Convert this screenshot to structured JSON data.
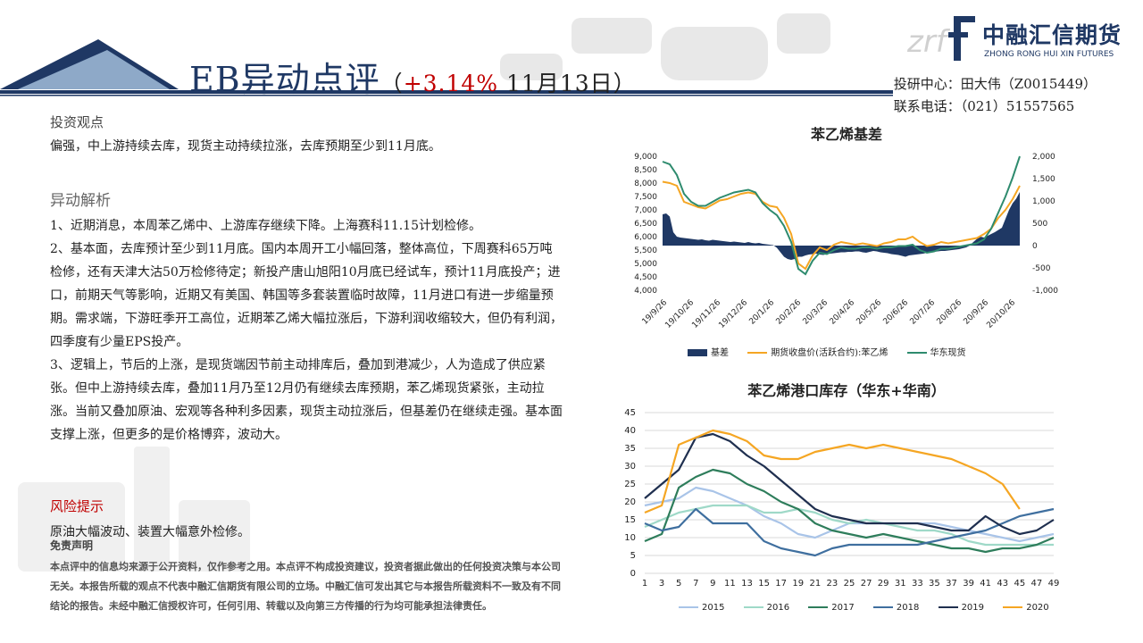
{
  "header": {
    "title_main": "EB异动点评",
    "title_paren_open": "（",
    "title_pct": "+3.14%",
    "title_date": " 11月13日",
    "title_paren_close": "）",
    "contact_center": "投研中心：田大伟（Z0015449）",
    "contact_phone": "联系电话：（021）51557565"
  },
  "logo": {
    "mark": "zrf",
    "cn": "中融汇信期货",
    "en": "ZHONG RONG HUI XIN FUTURES"
  },
  "view": {
    "heading": "投资观点",
    "text": "偏强，中上游持续去库，现货主动持续拉涨，去库预期至少到11月底。"
  },
  "analysis": {
    "heading": "异动解析",
    "paragraphs": [
      "1、近期消息，本周苯乙烯中、上游库存继续下降。上海赛科11.15计划检修。",
      "2、基本面，去库预计至少到11月底。国内本周开工小幅回落，整体高位，下周赛科65万吨检修，还有天津大沽50万检修待定；新投产唐山旭阳10月底已经试车，预计11月底投产；进口，前期天气等影响，近期又有美国、韩国等多套装置临时故障，11月进口有进一步缩量预期。需求端，下游旺季开工高位，近期苯乙烯大幅拉涨后，下游利润收缩较大，但仍有利润，四季度有少量EPS投产。",
      "3、逻辑上，节后的上涨，是现货端因节前主动排库后，叠加到港减少，人为造成了供应紧张。但中上游持续去库，叠加11月乃至12月仍有继续去库预期，苯乙烯现货紧张，主动拉涨。当前又叠加原油、宏观等各种利多因素，现货主动拉涨后，但基差仍在继续走强。基本面支撑上涨，但更多的是价格博弈，波动大。"
    ]
  },
  "risk": {
    "heading": "风险提示",
    "text": "原油大幅波动、装置大幅意外检修。"
  },
  "disclaimer": {
    "heading": "免责声明",
    "text": "本点评中的信息均来源于公开资料，仅作参考之用。本点评不构成投资建议，投资者据此做出的任何投资决策与本公司无关。本报告所载的观点不代表中融汇信期货有限公司的立场。中融汇信可发出其它与本报告所载资料不一致及有不同结论的报告。未经中融汇信授权许可，任何引用、转载以及向第三方传播的行为均可能承担法律责任。"
  },
  "colors": {
    "navy": "#1f3864",
    "orange": "#f5a623",
    "teal": "#2e8b6e",
    "red": "#c00000"
  },
  "chart_data": [
    {
      "type": "line",
      "title": "苯乙烯基差",
      "x_ticks": [
        "19/9/26",
        "19/10/26",
        "19/11/26",
        "19/12/26",
        "20/1/26",
        "20/2/26",
        "20/3/26",
        "20/4/26",
        "20/5/26",
        "20/6/26",
        "20/7/26",
        "20/8/26",
        "20/9/26",
        "20/10/26"
      ],
      "y_left": {
        "ylim": [
          4000,
          9000
        ],
        "ticks": [
          "4,000",
          "4,500",
          "5,000",
          "5,500",
          "6,000",
          "6,500",
          "7,000",
          "7,500",
          "8,000",
          "8,500",
          "9,000"
        ]
      },
      "y_right": {
        "ylim": [
          -1000,
          2000
        ],
        "ticks": [
          "-1,000",
          "-500",
          "0",
          "500",
          "1,000",
          "1,500",
          "2,000"
        ]
      },
      "series": [
        {
          "name": "基差",
          "kind": "area",
          "axis": "right",
          "x": [
            0,
            1,
            2,
            3,
            4,
            5,
            6,
            7,
            8,
            9,
            10,
            11,
            12,
            13,
            14,
            15,
            16,
            17,
            18,
            19,
            20,
            21,
            22,
            23,
            24,
            25,
            26,
            27,
            28,
            29,
            30,
            31,
            32,
            33,
            34,
            35,
            36,
            37,
            38,
            39,
            40,
            41,
            42,
            43,
            44,
            45,
            46,
            47,
            48,
            49,
            50,
            51,
            52,
            53,
            54,
            55,
            56,
            57,
            58,
            59,
            60,
            61,
            62,
            63,
            64,
            65,
            66,
            67,
            68,
            69,
            70,
            71,
            72,
            73,
            74,
            75,
            76,
            77,
            78,
            79,
            80,
            81,
            82,
            83,
            84,
            85,
            86,
            87,
            88,
            89,
            90,
            91,
            92,
            93,
            94,
            95,
            96,
            97,
            98,
            99,
            100
          ],
          "values": [
            700,
            720,
            650,
            300,
            200,
            180,
            170,
            160,
            150,
            140,
            130,
            140,
            120,
            110,
            130,
            120,
            110,
            100,
            90,
            80,
            90,
            80,
            70,
            60,
            80,
            60,
            50,
            60,
            40,
            30,
            20,
            10,
            -50,
            -150,
            -250,
            -300,
            -320,
            -300,
            -250,
            -250,
            -220,
            -200,
            -190,
            -180,
            -200,
            -210,
            -190,
            -180,
            -170,
            -160,
            -150,
            -150,
            -140,
            -140,
            -130,
            -130,
            -150,
            -160,
            -140,
            -120,
            -130,
            -150,
            -160,
            -170,
            -190,
            -200,
            -210,
            -230,
            -250,
            -220,
            -210,
            -200,
            -190,
            -180,
            -160,
            -150,
            -140,
            -130,
            -120,
            -120,
            -110,
            -100,
            -90,
            -80,
            -60,
            -40,
            0,
            80,
            150,
            200,
            180,
            220,
            260,
            300,
            350,
            400,
            600,
            800,
            950,
            1050,
            1200
          ]
        },
        {
          "name": "期货收盘价(活跃合约):苯乙烯",
          "kind": "line",
          "axis": "left",
          "x": [
            0,
            2,
            4,
            6,
            8,
            10,
            12,
            14,
            16,
            18,
            20,
            22,
            24,
            26,
            28,
            30,
            32,
            34,
            36,
            38,
            40,
            42,
            44,
            46,
            48,
            50,
            52,
            54,
            56,
            58,
            60,
            62,
            64,
            66,
            68,
            70,
            72,
            74,
            76,
            78,
            80,
            82,
            84,
            86,
            88,
            90,
            92,
            94,
            96,
            98,
            100
          ],
          "values": [
            8050,
            8000,
            7900,
            7300,
            7200,
            7100,
            7050,
            7200,
            7350,
            7400,
            7500,
            7600,
            7650,
            7600,
            7300,
            7150,
            7100,
            6700,
            6100,
            5000,
            4800,
            5300,
            5600,
            5500,
            5700,
            5800,
            5750,
            5700,
            5750,
            5700,
            5650,
            5750,
            5800,
            5900,
            5900,
            6000,
            5800,
            5650,
            5700,
            5800,
            5750,
            5800,
            5850,
            5900,
            5950,
            6100,
            6300,
            6700,
            7000,
            7400,
            7900
          ]
        },
        {
          "name": "华东现货",
          "kind": "line",
          "axis": "left",
          "x": [
            0,
            2,
            4,
            6,
            8,
            10,
            12,
            14,
            16,
            18,
            20,
            22,
            24,
            26,
            28,
            30,
            32,
            34,
            36,
            38,
            40,
            42,
            44,
            46,
            48,
            50,
            52,
            54,
            56,
            58,
            60,
            62,
            64,
            66,
            68,
            70,
            72,
            74,
            76,
            78,
            80,
            82,
            84,
            86,
            88,
            90,
            92,
            94,
            96,
            98,
            100
          ],
          "values": [
            8800,
            8700,
            8300,
            7600,
            7300,
            7150,
            7150,
            7300,
            7450,
            7550,
            7650,
            7700,
            7750,
            7650,
            7250,
            7000,
            6800,
            6400,
            5800,
            4800,
            4600,
            5100,
            5400,
            5350,
            5500,
            5600,
            5550,
            5550,
            5600,
            5600,
            5550,
            5600,
            5600,
            5650,
            5650,
            5700,
            5500,
            5400,
            5450,
            5550,
            5550,
            5600,
            5650,
            5700,
            5750,
            5900,
            6300,
            6900,
            7500,
            8200,
            9000
          ]
        }
      ],
      "legend": [
        "基差",
        "期货收盘价(活跃合约):苯乙烯",
        "华东现货"
      ]
    },
    {
      "type": "line",
      "title": "苯乙烯港口库存（华东+华南）",
      "x": [
        1,
        3,
        5,
        7,
        9,
        11,
        13,
        15,
        17,
        19,
        21,
        23,
        25,
        27,
        29,
        31,
        33,
        35,
        37,
        39,
        41,
        43,
        45,
        47,
        49
      ],
      "ylim": [
        0,
        45
      ],
      "y_ticks": [
        0,
        5,
        10,
        15,
        20,
        25,
        30,
        35,
        40,
        45
      ],
      "series": [
        {
          "name": "2015",
          "values": [
            19,
            20,
            21,
            24,
            23,
            21,
            19,
            16,
            14,
            11,
            10,
            12,
            14,
            14,
            14,
            14,
            14,
            14,
            13,
            12,
            11,
            10,
            9,
            10,
            11
          ]
        },
        {
          "name": "2016",
          "values": [
            13,
            15,
            17,
            18,
            19,
            19,
            19,
            17,
            17,
            18,
            17,
            15,
            14,
            15,
            14,
            13,
            12,
            12,
            11,
            9,
            8,
            8,
            8,
            8,
            8
          ]
        },
        {
          "name": "2017",
          "values": [
            9,
            11,
            24,
            27,
            29,
            28,
            25,
            23,
            20,
            18,
            14,
            12,
            11,
            10,
            11,
            10,
            9,
            8,
            7,
            7,
            6,
            7,
            7,
            8,
            10
          ]
        },
        {
          "name": "2018",
          "values": [
            14,
            12,
            13,
            18,
            14,
            14,
            14,
            9,
            7,
            6,
            5,
            7,
            8,
            8,
            8,
            8,
            8,
            9,
            10,
            11,
            12,
            14,
            16,
            17,
            18
          ]
        },
        {
          "name": "2019",
          "values": [
            21,
            25,
            29,
            38,
            39,
            37,
            33,
            30,
            26,
            22,
            18,
            16,
            15,
            14,
            14,
            14,
            14,
            13,
            12,
            12,
            16,
            13,
            11,
            12,
            15
          ]
        },
        {
          "name": "2020",
          "values": [
            17,
            19,
            36,
            38,
            40,
            39,
            37,
            33,
            32,
            32,
            34,
            35,
            36,
            35,
            36,
            35,
            34,
            33,
            32,
            30,
            28,
            25,
            18,
            null,
            null
          ]
        }
      ],
      "legend": [
        "2015",
        "2016",
        "2017",
        "2018",
        "2019",
        "2020"
      ]
    }
  ]
}
